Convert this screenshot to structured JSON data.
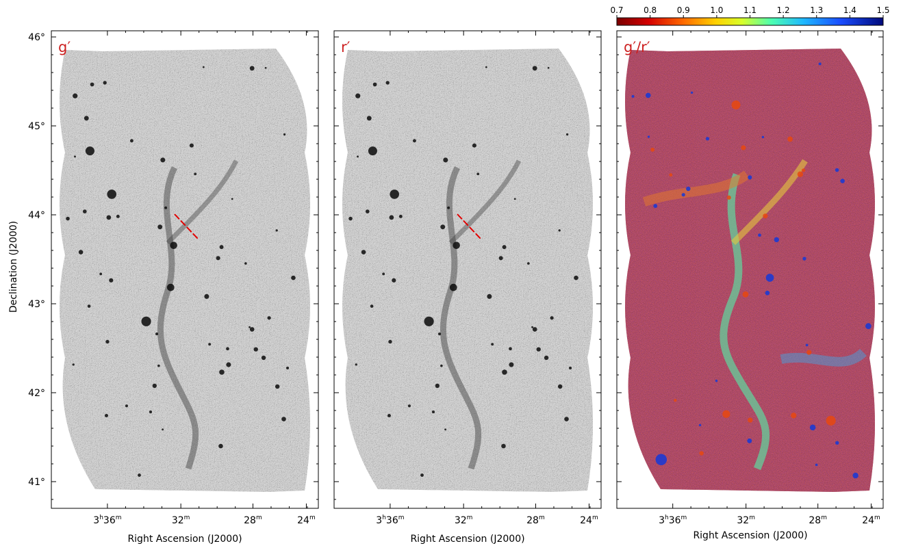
{
  "colors": {
    "panel_label": "#cc1f1f",
    "slit_line": "#e00000",
    "sky_gray": "#9a9a9a",
    "ratio_base": "#8a1c1c"
  },
  "panels": [
    {
      "label": "g′",
      "kind": "grayscale"
    },
    {
      "label": "r′",
      "kind": "grayscale"
    },
    {
      "label": "g′/r′",
      "kind": "ratio"
    }
  ],
  "axes": {
    "ylabel": "Declination (J2000)",
    "xlabel": "Right Ascension (J2000)",
    "dec_ticks": [
      "46°",
      "45°",
      "44°",
      "43°",
      "42°",
      "41°"
    ],
    "ra_ticks": [
      {
        "h": "3",
        "m": "36",
        "full": true
      },
      {
        "m": "32"
      },
      {
        "m": "28"
      },
      {
        "m": "24"
      }
    ]
  },
  "colorbar": {
    "ticks": [
      "0.7",
      "0.8",
      "0.9",
      "1.0",
      "1.1",
      "1.2",
      "1.3",
      "1.4",
      "1.5"
    ],
    "range": [
      0.7,
      1.5
    ],
    "colormap": "jet-like (red → yellow → cyan → blue)"
  }
}
